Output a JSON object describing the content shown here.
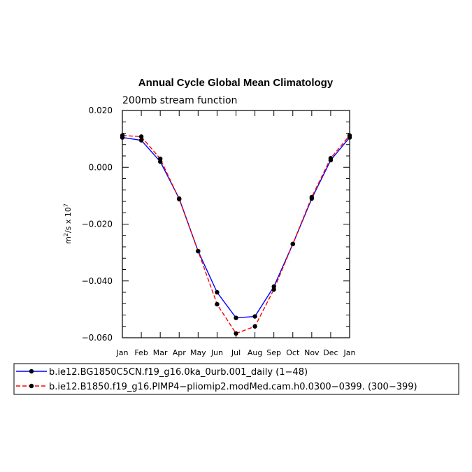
{
  "chart_data": {
    "type": "line",
    "title": "Annual Cycle Global Mean Climatology",
    "subtitle": "200mb stream function",
    "ylabel_base": "m",
    "ylabel_sup1": "2",
    "ylabel_mid": "/s x 10",
    "ylabel_sup2": "7",
    "x_labels": [
      "Jan",
      "Feb",
      "Mar",
      "Apr",
      "May",
      "Jun",
      "Jul",
      "Aug",
      "Sep",
      "Oct",
      "Nov",
      "Dec",
      "Jan"
    ],
    "ylim": [
      -0.06,
      0.02
    ],
    "y_ticks": [
      "0.020",
      "0.000",
      "−0.020",
      "−0.040",
      "−0.060"
    ],
    "y_tick_values": [
      0.02,
      0.0,
      -0.02,
      -0.04,
      -0.06
    ],
    "series": [
      {
        "name": "b.ie12.BG1850C5CN.f19_g16.0ka_0urb.001_daily (1−48)",
        "color": "#0000ff",
        "dash": "solid",
        "marker": "filled-circle",
        "values": [
          0.0105,
          0.0095,
          0.002,
          -0.011,
          -0.0295,
          -0.044,
          -0.053,
          -0.0525,
          -0.042,
          -0.027,
          -0.011,
          0.0025,
          0.0105
        ]
      },
      {
        "name": "b.ie12.B1850.f19_g16.PIMP4−pliomip2.modMed.cam.h0.0300−0399. (300−399)",
        "color": "#ff0000",
        "dash": "dashed",
        "marker": "filled-circle",
        "values": [
          0.0112,
          0.0108,
          0.003,
          -0.0112,
          -0.0295,
          -0.0482,
          -0.0585,
          -0.056,
          -0.043,
          -0.027,
          -0.0105,
          0.0032,
          0.0112
        ]
      }
    ],
    "grid": false,
    "legend_position": "bottom"
  }
}
